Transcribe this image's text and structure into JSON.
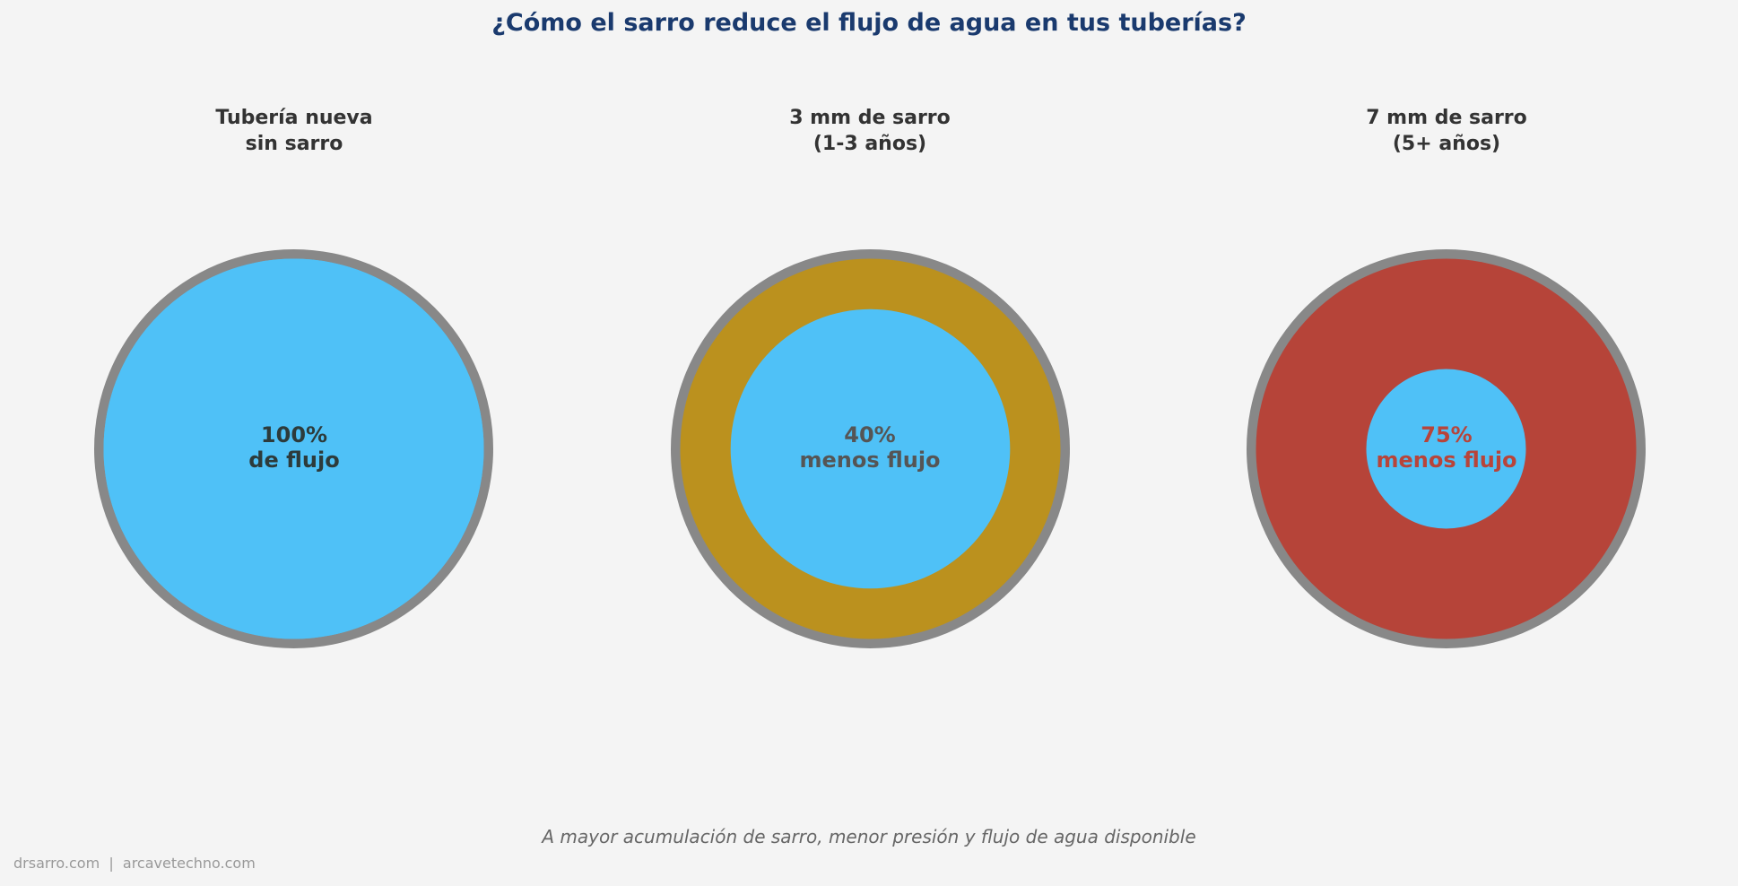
{
  "title": "¿Cómo el sarro reduce el flujo de agua en tus tuberías?",
  "panels": [
    {
      "heading_line1": "Tubería nueva",
      "heading_line2": "sin sarro",
      "center_line1": "100%",
      "center_line2": "de flujo",
      "inner_fraction": 1.0,
      "scale_color": "#4fc1f7",
      "water_color": "#4fc1f7",
      "label_color": "#2d3b3b"
    },
    {
      "heading_line1": "3 mm de sarro",
      "heading_line2": "(1-3 años)",
      "center_line1": "40%",
      "center_line2": "menos flujo",
      "inner_fraction": 0.735,
      "scale_color": "#bb911e",
      "water_color": "#4fc1f7",
      "label_color": "#555555"
    },
    {
      "heading_line1": "7 mm de sarro",
      "heading_line2": "(5+ años)",
      "center_line1": "75%",
      "center_line2": "menos flujo",
      "inner_fraction": 0.42,
      "scale_color": "#b64439",
      "water_color": "#4fc1f7",
      "label_color": "#b8443a"
    }
  ],
  "pipe_wall_color": "#888888",
  "caption": "A mayor acumulación de sarro, menor presión y flujo de agua disponible",
  "footer": "drsarro.com  |  arcavetechno.com"
}
